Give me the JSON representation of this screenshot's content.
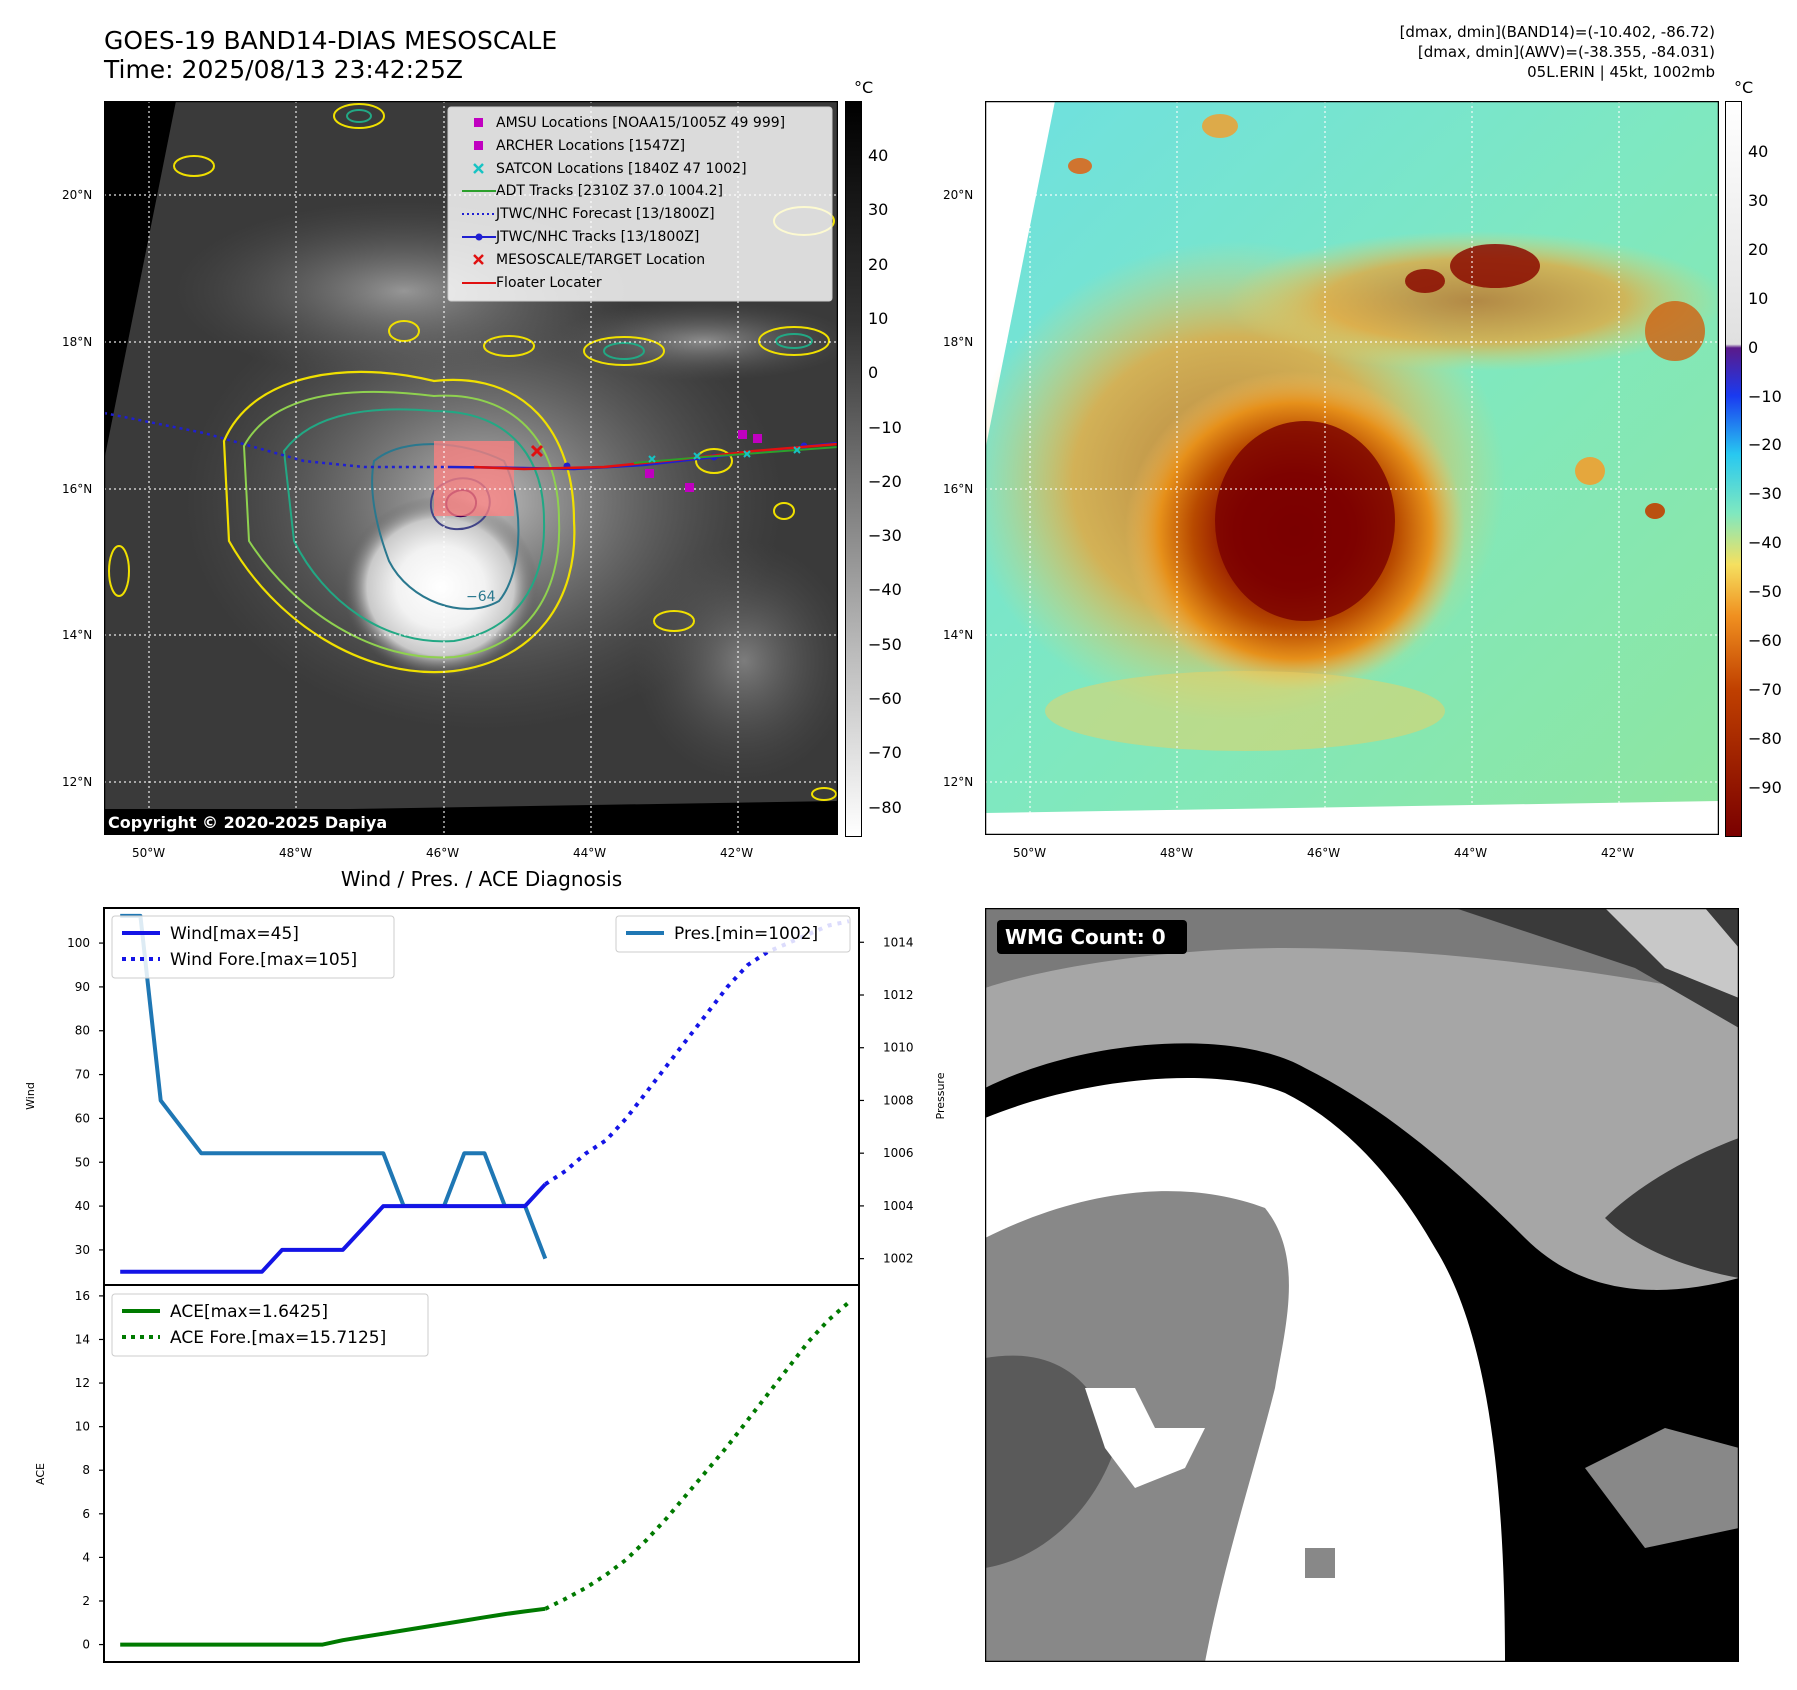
{
  "header": {
    "title_line1": "GOES-19 BAND14-DIAS MESOSCALE",
    "title_line2": "Time: 2025/08/13 23:42:25Z",
    "info_line1": "[dmax, dmin](BAND14)=(-10.402, -86.72)",
    "info_line2": "[dmax, dmin](AWV)=(-38.355, -84.031)",
    "info_line3": "05L.ERIN | 45kt, 1002mb"
  },
  "map_axes": {
    "lat_ticks": [
      "20°N",
      "18°N",
      "16°N",
      "14°N",
      "12°N"
    ],
    "lon_ticks": [
      "50°W",
      "48°W",
      "46°W",
      "44°W",
      "42°W"
    ]
  },
  "ir_panel": {
    "colorbar_unit": "°C",
    "colorbar_ticks": [
      "40",
      "30",
      "20",
      "10",
      "0",
      "−10",
      "−20",
      "−30",
      "−40",
      "−50",
      "−60",
      "−70",
      "−80"
    ],
    "copyright": "Copyright © 2020-2025 Dapiya",
    "contour_label": "−64",
    "legend": [
      {
        "label": "AMSU Locations [NOAA15/1005Z 49 999]",
        "marker": "square",
        "color": "#c000c0"
      },
      {
        "label": "ARCHER Locations [1547Z]",
        "marker": "square",
        "color": "#c000c0"
      },
      {
        "label": "SATCON Locations [1840Z 47 1002]",
        "marker": "x",
        "color": "#17c3c3"
      },
      {
        "label": "ADT Tracks [2310Z 37.0 1004.2]",
        "marker": "line",
        "color": "#2ca02c"
      },
      {
        "label": "JTWC/NHC Forecast [13/1800Z]",
        "marker": "dotted",
        "color": "#1f1fd1"
      },
      {
        "label": "JTWC/NHC Tracks [13/1800Z]",
        "marker": "line-dot",
        "color": "#1f1fd1"
      },
      {
        "label": "MESOSCALE/TARGET Location",
        "marker": "x",
        "color": "#e01010"
      },
      {
        "label": "Floater Locater",
        "marker": "line",
        "color": "#e01010"
      }
    ]
  },
  "wv_panel": {
    "colorbar_unit": "°C",
    "colorbar_ticks": [
      "40",
      "30",
      "20",
      "10",
      "0",
      "−10",
      "−20",
      "−30",
      "−40",
      "−50",
      "−60",
      "−70",
      "−80",
      "−90"
    ]
  },
  "diag": {
    "title": "Wind / Pres. / ACE Diagnosis",
    "wind_ylabel": "Wind",
    "pres_ylabel": "Pressure",
    "ace_ylabel": "ACE",
    "wind_ticks": [
      "100",
      "90",
      "80",
      "70",
      "60",
      "50",
      "40",
      "30"
    ],
    "pres_ticks": [
      "1014",
      "1012",
      "1010",
      "1008",
      "1006",
      "1004",
      "1002"
    ],
    "ace_ticks": [
      "16",
      "14",
      "12",
      "10",
      "8",
      "6",
      "4",
      "2",
      "0"
    ],
    "legend_wind": "Wind[max=45]",
    "legend_wind_fore": "Wind Fore.[max=105]",
    "legend_pres": "Pres.[min=1002]",
    "legend_ace": "ACE[max=1.6425]",
    "legend_ace_fore": "ACE Fore.[max=15.7125]"
  },
  "wmg_panel": {
    "label": "WMG Count: 0"
  },
  "chart_data": [
    {
      "type": "line",
      "title": "Wind / Pres. / ACE Diagnosis",
      "ylabel": "Wind",
      "ylim": [
        22,
        108
      ],
      "series": [
        {
          "name": "Wind[max=45]",
          "x": [
            0,
            1,
            2,
            3,
            4,
            5,
            6,
            7,
            8,
            9,
            10,
            11,
            12,
            13,
            14,
            15,
            16,
            17,
            18,
            19,
            20,
            21
          ],
          "values": [
            25,
            25,
            25,
            25,
            25,
            25,
            25,
            25,
            30,
            30,
            30,
            30,
            35,
            40,
            40,
            40,
            40,
            40,
            40,
            40,
            40,
            45
          ],
          "color": "#1414e6"
        },
        {
          "name": "Wind Fore.[max=105]",
          "x": [
            21,
            22,
            23,
            24,
            25,
            26,
            27,
            28,
            29,
            30,
            31,
            32,
            33,
            34,
            35,
            36
          ],
          "values": [
            45,
            48,
            52,
            55,
            60,
            66,
            72,
            78,
            84,
            90,
            95,
            98,
            100,
            102,
            104,
            105
          ],
          "color": "#1414e6",
          "dashed": true
        }
      ]
    },
    {
      "type": "line",
      "ylabel": "Pressure",
      "ylim": [
        1001.0,
        1015.3
      ],
      "series": [
        {
          "name": "Pres.[min=1002]",
          "x": [
            0,
            1,
            2,
            3,
            4,
            5,
            6,
            7,
            8,
            9,
            10,
            11,
            12,
            13,
            14,
            15,
            16,
            17,
            18,
            19,
            20,
            21
          ],
          "values": [
            1015,
            1015,
            1008,
            1007,
            1006,
            1006,
            1006,
            1006,
            1006,
            1006,
            1006,
            1006,
            1006,
            1006,
            1004,
            1004,
            1004,
            1006,
            1006,
            1004,
            1004,
            1002
          ],
          "color": "#1f77b4"
        }
      ]
    },
    {
      "type": "line",
      "ylabel": "ACE",
      "ylim": [
        -0.8,
        16.5
      ],
      "series": [
        {
          "name": "ACE[max=1.6425]",
          "x": [
            0,
            1,
            2,
            3,
            4,
            5,
            6,
            7,
            8,
            9,
            10,
            11,
            12,
            13,
            14,
            15,
            16,
            17,
            18,
            19,
            20,
            21
          ],
          "values": [
            0,
            0,
            0,
            0,
            0,
            0,
            0,
            0,
            0,
            0,
            0,
            0.2,
            0.35,
            0.5,
            0.65,
            0.8,
            0.95,
            1.1,
            1.25,
            1.4,
            1.52,
            1.6425
          ],
          "color": "#007a00"
        },
        {
          "name": "ACE Fore.[max=15.7125]",
          "x": [
            21,
            22,
            23,
            24,
            25,
            26,
            27,
            28,
            29,
            30,
            31,
            32,
            33,
            34,
            35,
            36
          ],
          "values": [
            1.6425,
            2.1,
            2.6,
            3.2,
            3.9,
            4.8,
            5.8,
            6.9,
            8.0,
            9.1,
            10.3,
            11.5,
            12.7,
            13.9,
            14.9,
            15.7125
          ],
          "color": "#007a00",
          "dashed": true
        }
      ]
    }
  ]
}
